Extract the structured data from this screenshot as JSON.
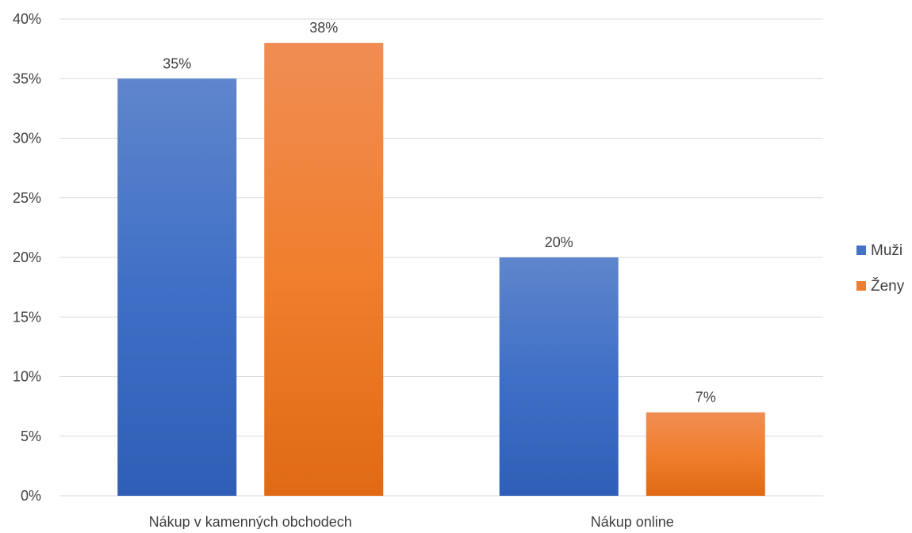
{
  "chart_data": {
    "type": "bar",
    "categories": [
      "Nákup v kamenných obchodech",
      "Nákup online"
    ],
    "series": [
      {
        "name": "Muži",
        "values": [
          35,
          20
        ],
        "color": "#4472C4"
      },
      {
        "name": "Ženy",
        "values": [
          38,
          7
        ],
        "color": "#ED7D31"
      }
    ],
    "data_labels": [
      [
        "35%",
        "20%"
      ],
      [
        "38%",
        "7%"
      ]
    ],
    "title": "",
    "xlabel": "",
    "ylabel": "",
    "ylim": [
      0,
      40
    ],
    "y_ticks": [
      0,
      5,
      10,
      15,
      20,
      25,
      30,
      35,
      40
    ],
    "y_tick_labels": [
      "0%",
      "5%",
      "10%",
      "15%",
      "20%",
      "25%",
      "30%",
      "35%",
      "40%"
    ],
    "grid": true,
    "legend_position": "right"
  }
}
